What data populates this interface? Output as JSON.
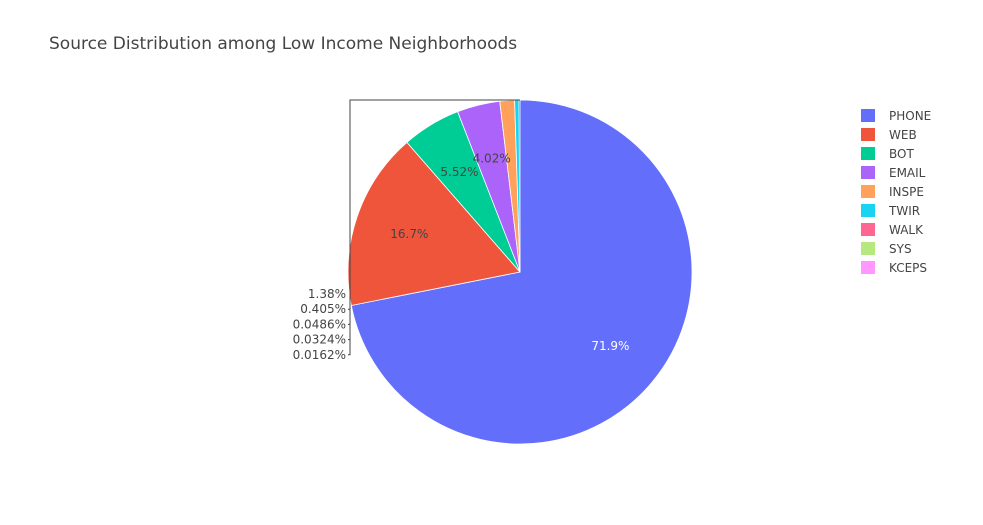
{
  "chart_data": {
    "type": "pie",
    "title": "Source Distribution among Low Income Neighborhoods",
    "slices": [
      {
        "label": "PHONE",
        "percent_label": "71.9%",
        "value": 71.9,
        "color": "#636efa"
      },
      {
        "label": "WEB",
        "percent_label": "16.7%",
        "value": 16.7,
        "color": "#ef553b"
      },
      {
        "label": "BOT",
        "percent_label": "5.52%",
        "value": 5.52,
        "color": "#00cc96"
      },
      {
        "label": "EMAIL",
        "percent_label": "4.02%",
        "value": 4.02,
        "color": "#ab63fa"
      },
      {
        "label": "INSPE",
        "percent_label": "1.38%",
        "value": 1.38,
        "color": "#ffa15a"
      },
      {
        "label": "TWIR",
        "percent_label": "0.405%",
        "value": 0.405,
        "color": "#19d3f3"
      },
      {
        "label": "WALK",
        "percent_label": "0.0486%",
        "value": 0.0486,
        "color": "#ff6692"
      },
      {
        "label": "SYS",
        "percent_label": "0.0324%",
        "value": 0.0324,
        "color": "#b6e880"
      },
      {
        "label": "KCEPS",
        "percent_label": "0.0162%",
        "value": 0.0162,
        "color": "#ff97ff"
      }
    ],
    "legend_position": "top-right",
    "direction": "clockwise",
    "start": "top"
  }
}
